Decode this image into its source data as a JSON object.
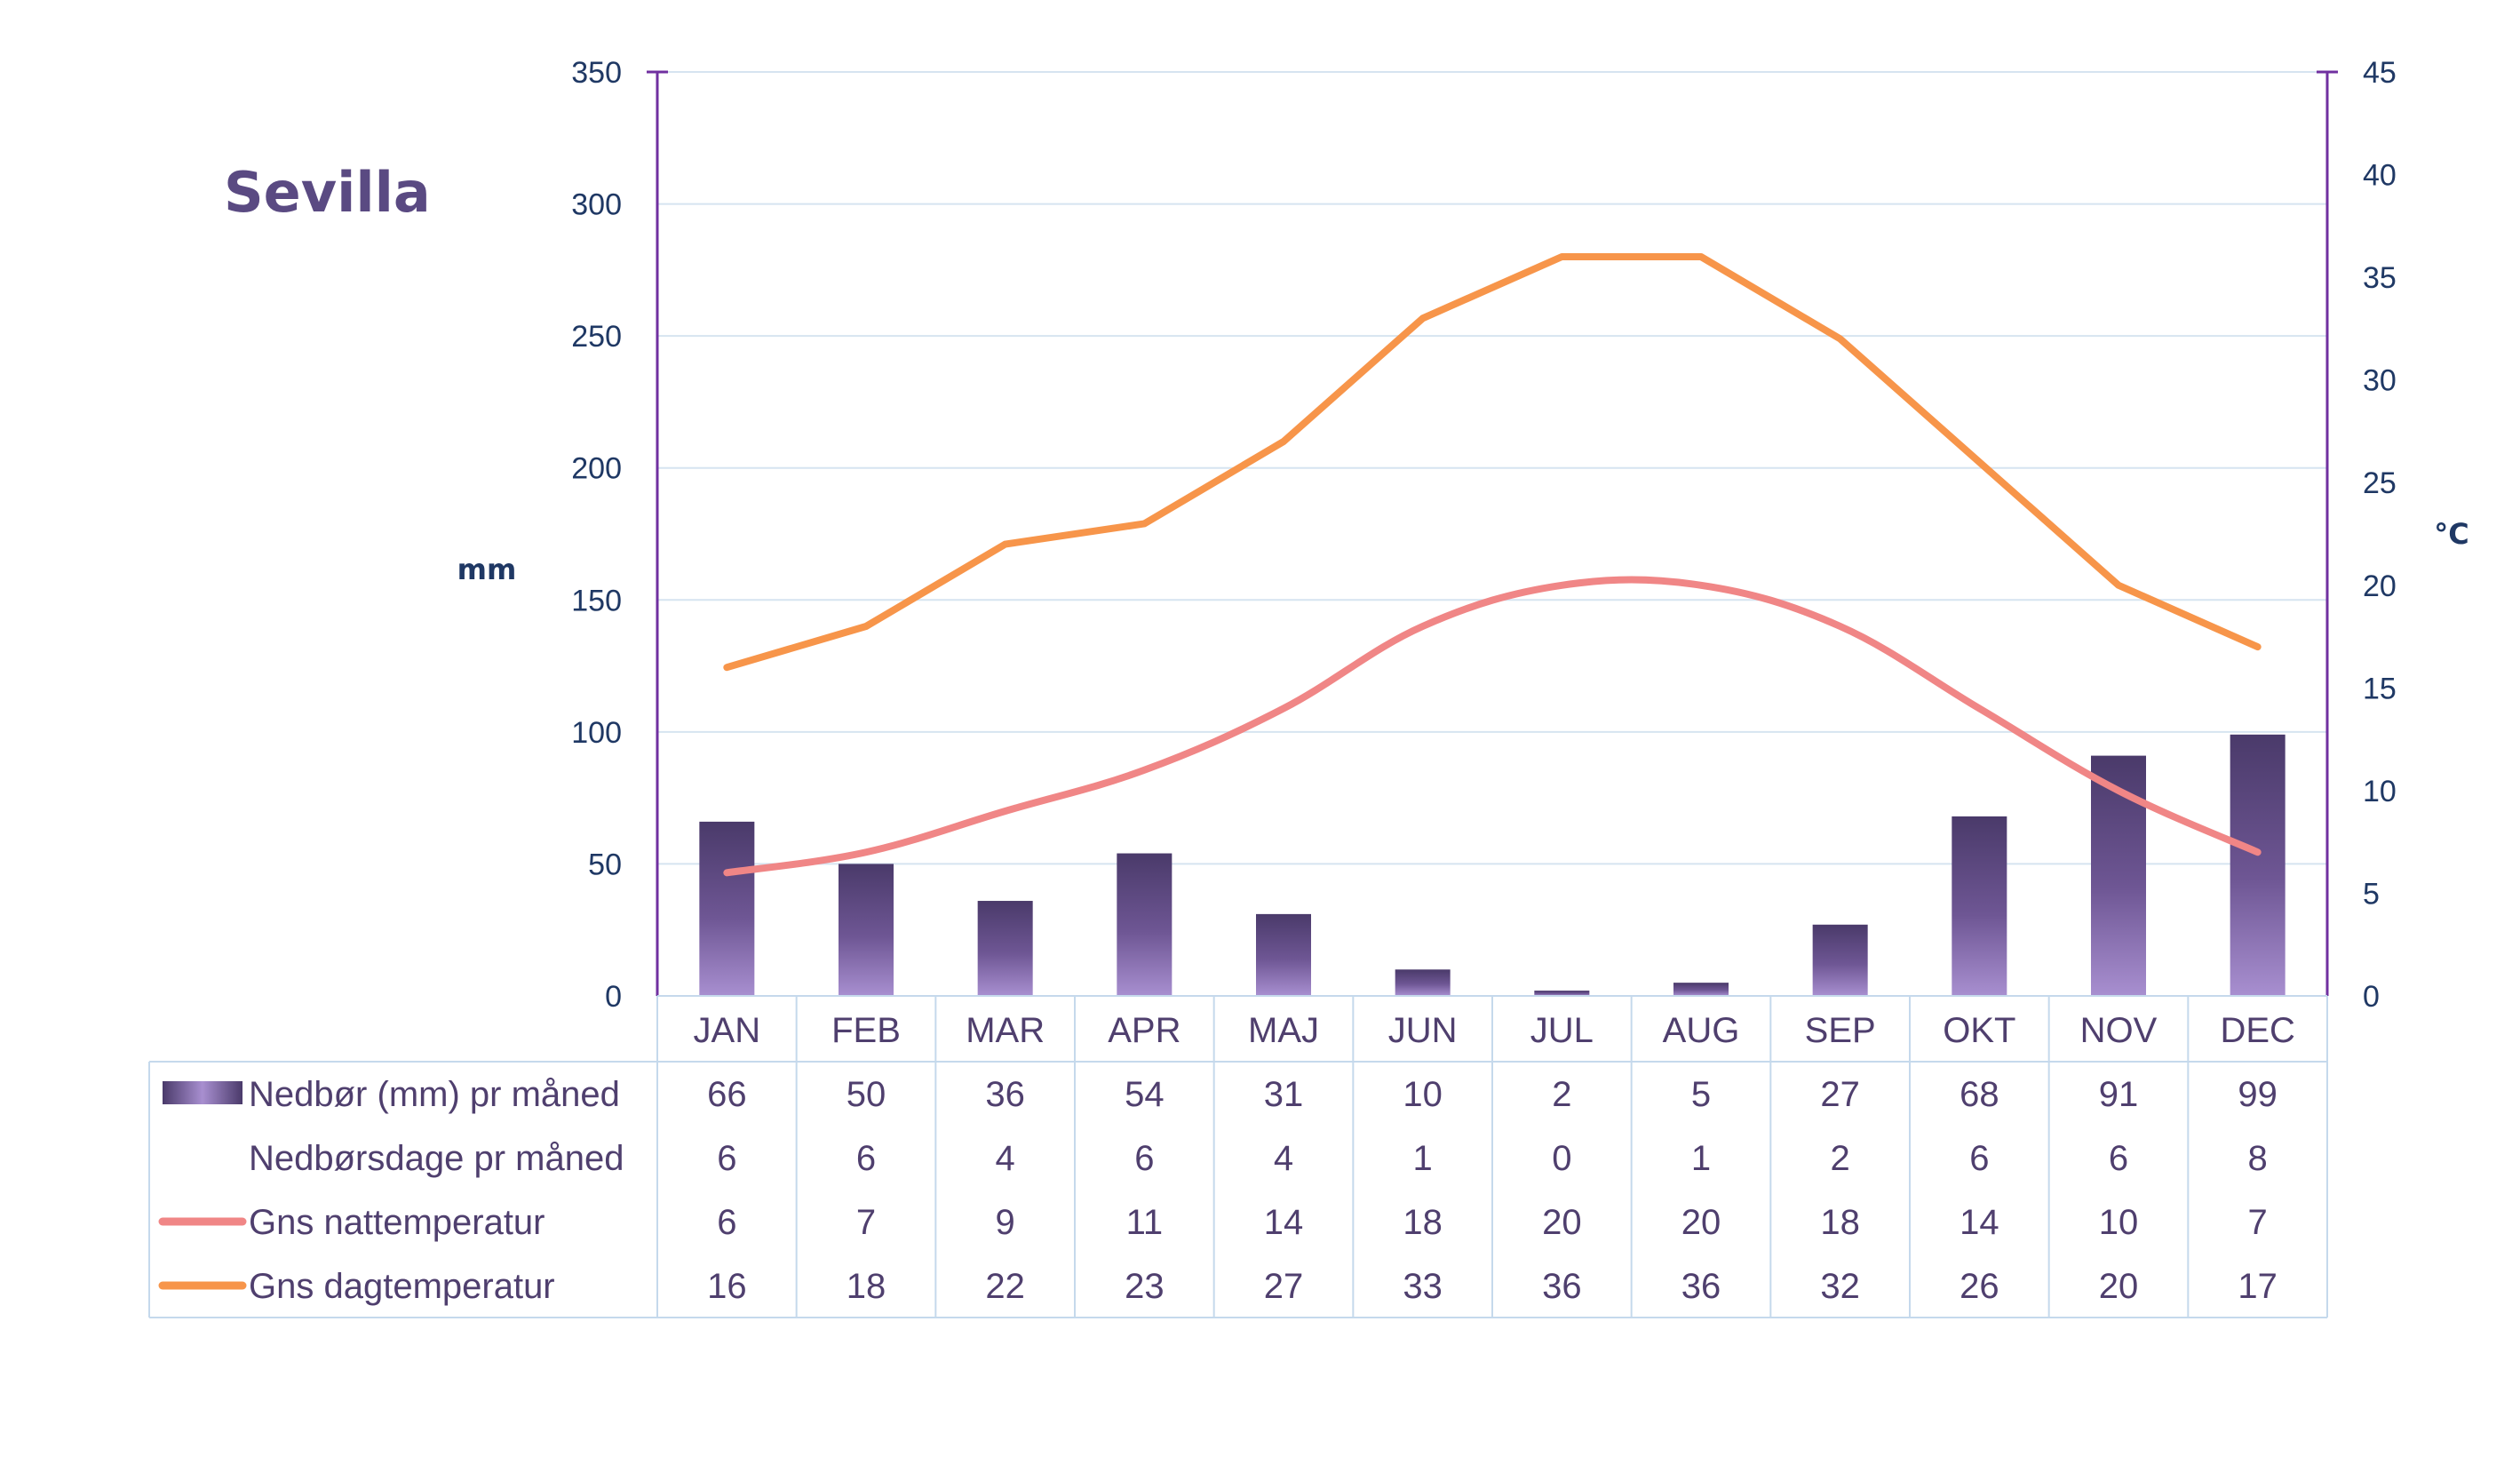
{
  "colors": {
    "title": "#5a4a82",
    "axis_text": "#1f3864",
    "axis_line": "#7030a0",
    "grid": "#d6e4f0",
    "table_border": "#c5d9ec",
    "table_text": "#4f3f6e",
    "bar_dark": "#4a3a6a",
    "bar_light": "#a88fd0",
    "night_line": "#f08686",
    "day_line": "#f7954a"
  },
  "chart_data": {
    "type": "bar",
    "title": "Sevilla",
    "categories": [
      "JAN",
      "FEB",
      "MAR",
      "APR",
      "MAJ",
      "JUN",
      "JUL",
      "AUG",
      "SEP",
      "OKT",
      "NOV",
      "DEC"
    ],
    "y_left": {
      "label": "mm",
      "range": [
        0,
        350
      ],
      "ticks": [
        "0",
        "50",
        "100",
        "150",
        "200",
        "250",
        "300",
        "350"
      ]
    },
    "y_right": {
      "label": "°C",
      "range": [
        0,
        45
      ],
      "ticks": [
        "0",
        "5",
        "10",
        "15",
        "20",
        "25",
        "30",
        "35",
        "40",
        "45"
      ]
    },
    "grid": true,
    "legend": "table below chart",
    "series": [
      {
        "name": "Nedbør (mm) pr måned",
        "type": "bar",
        "axis": "left",
        "values": [
          66,
          50,
          36,
          54,
          31,
          10,
          2,
          5,
          27,
          68,
          91,
          99
        ],
        "labels": [
          "66",
          "50",
          "36",
          "54",
          "31",
          "10",
          "2",
          "5",
          "27",
          "68",
          "91",
          "99"
        ]
      },
      {
        "name": "Nedbørsdage pr måned",
        "type": "table-only",
        "values": [
          6,
          6,
          4,
          6,
          4,
          1,
          0,
          1,
          2,
          6,
          6,
          8
        ],
        "labels": [
          "6",
          "6",
          "4",
          "6",
          "4",
          "1",
          "0",
          "1",
          "2",
          "6",
          "6",
          "8"
        ]
      },
      {
        "name": "Gns nattemperatur",
        "type": "line",
        "axis": "right",
        "values": [
          6,
          7,
          9,
          11,
          14,
          18,
          20,
          20,
          18,
          14,
          10,
          7
        ],
        "labels": [
          "6",
          "7",
          "9",
          "11",
          "14",
          "18",
          "20",
          "20",
          "18",
          "14",
          "10",
          "7"
        ]
      },
      {
        "name": "Gns dagtemperatur",
        "type": "line",
        "axis": "right",
        "values": [
          16,
          18,
          22,
          23,
          27,
          33,
          36,
          36,
          32,
          26,
          20,
          17
        ],
        "labels": [
          "16",
          "18",
          "22",
          "23",
          "27",
          "33",
          "36",
          "36",
          "32",
          "26",
          "20",
          "17"
        ]
      }
    ]
  }
}
